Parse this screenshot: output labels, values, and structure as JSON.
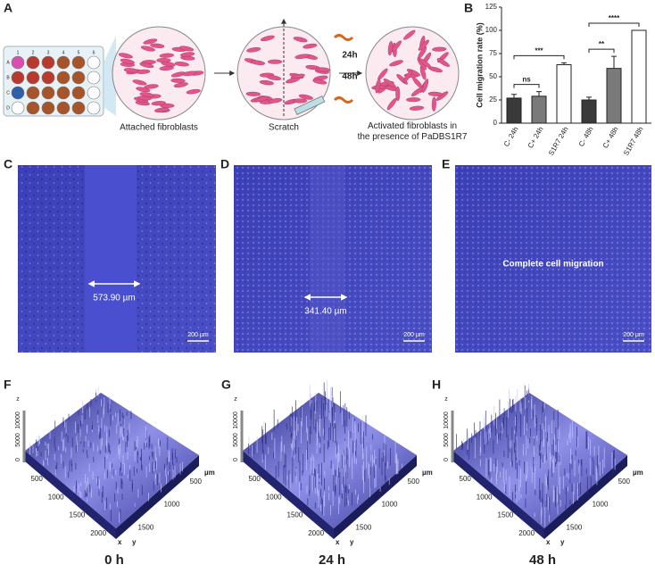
{
  "figure_panels": [
    "A",
    "B",
    "C",
    "D",
    "E",
    "F",
    "G",
    "H"
  ],
  "schematic": {
    "plate_rows": [
      "A",
      "B",
      "C",
      "D"
    ],
    "plate_columns": [
      "1",
      "2",
      "3",
      "4",
      "5",
      "6"
    ],
    "steps": [
      "Attached fibroblasts",
      "Scratch",
      "Activated fibroblasts in the presence of PaDBS1R7"
    ],
    "times": [
      "24h",
      "48h"
    ]
  },
  "chart_data": {
    "type": "bar",
    "y_label": "Cell migration rate (%)",
    "categories": [
      "C- 24h",
      "C+ 24h",
      "S1R7 24h",
      "C- 48h",
      "C+ 48h",
      "S1R7 48h"
    ],
    "values": [
      27,
      29,
      63,
      25,
      59,
      100
    ],
    "errors": [
      4,
      5,
      2,
      3,
      13,
      0
    ],
    "colors": [
      "#3a3a3a",
      "#7a7a7a",
      "#ffffff",
      "#3a3a3a",
      "#7a7a7a",
      "#ffffff"
    ],
    "ylim": [
      0,
      125
    ],
    "yticks": [
      0,
      25,
      50,
      75,
      100,
      125
    ],
    "significance": [
      {
        "label": "ns",
        "from": "C- 24h",
        "to": "C+ 24h"
      },
      {
        "label": "***",
        "from": "C- 24h",
        "to": "S1R7 24h"
      },
      {
        "label": "**",
        "from": "C- 48h",
        "to": "C+ 48h"
      },
      {
        "label": "****",
        "from": "C- 48h",
        "to": "S1R7 48h"
      }
    ]
  },
  "micrographs": [
    {
      "measurement": "573.90 µm",
      "scale_bar": "200 µm"
    },
    {
      "measurement": "341.40 µm",
      "scale_bar": "200 µm"
    },
    {
      "annotation": "Complete cell migration",
      "scale_bar": "200 µm"
    }
  ],
  "surface_plots": {
    "z_ticks": [
      0,
      5000,
      10000
    ],
    "x_ticks": [
      500,
      1000,
      1500,
      2000
    ],
    "y_ticks": [
      1500,
      1000,
      500
    ],
    "x_label": "x",
    "y_label": "y",
    "z_label": "z",
    "unit": "µm",
    "captions": [
      "0 h",
      "24 h",
      "48 h"
    ]
  }
}
